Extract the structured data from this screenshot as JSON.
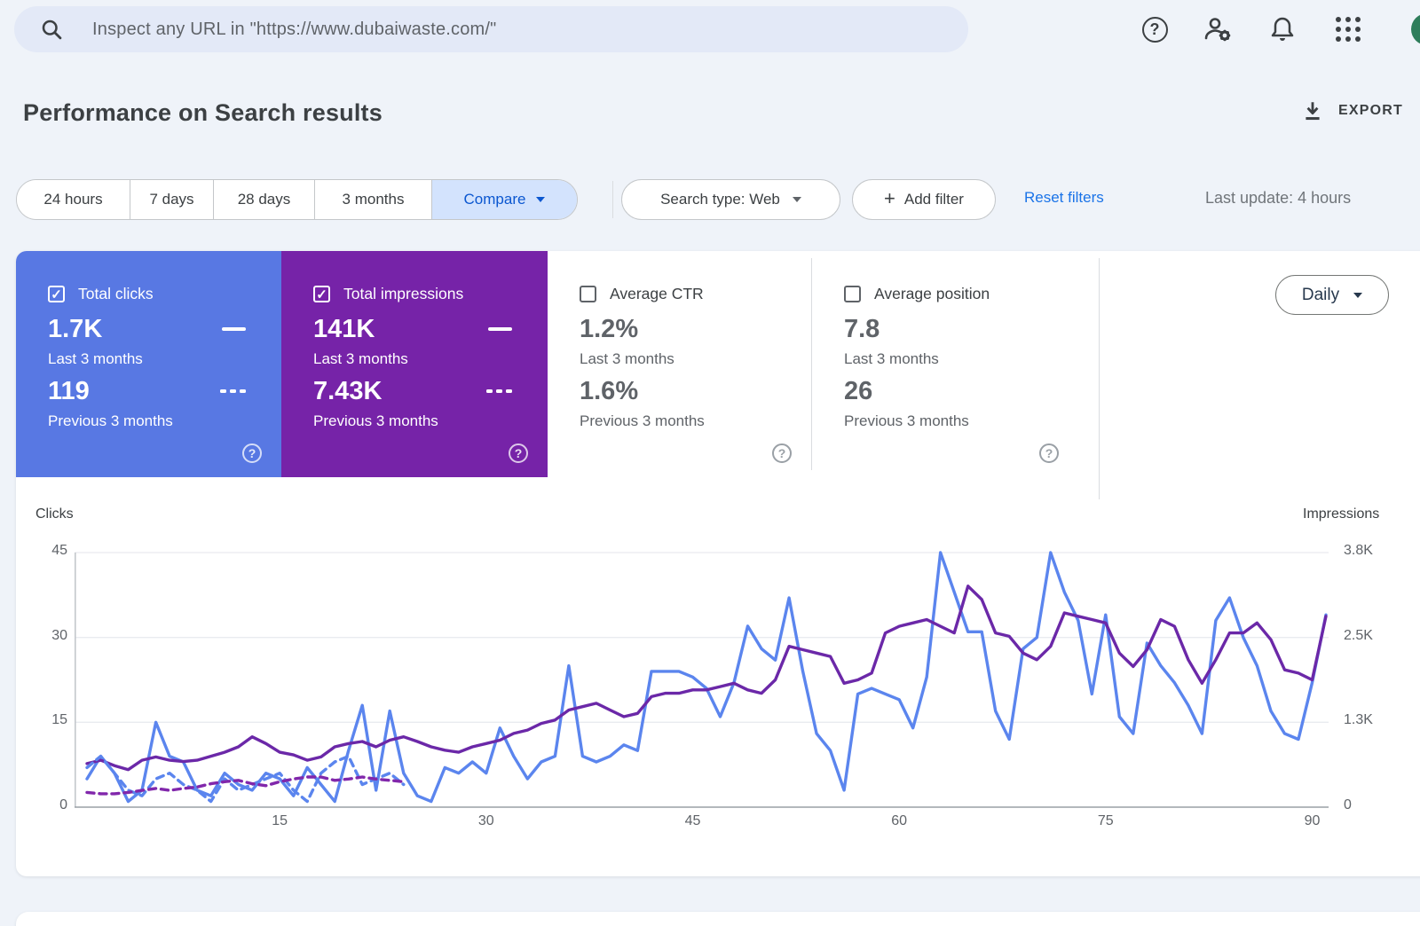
{
  "topbar": {
    "search_placeholder": "Inspect any URL in \"https://www.dubaiwaste.com/\""
  },
  "header": {
    "title": "Performance on Search results",
    "export_label": "EXPORT"
  },
  "filters": {
    "ranges": [
      "24 hours",
      "7 days",
      "28 days",
      "3 months"
    ],
    "compare_label": "Compare",
    "search_type_label": "Search type: Web",
    "add_filter_plus": "+",
    "add_filter_label": "Add filter",
    "reset_label": "Reset filters",
    "last_update": "Last update: 4 hours"
  },
  "icons": {
    "checkmark": "✓",
    "question_mark": "?"
  },
  "tiles": [
    {
      "label": "Total clicks",
      "checked": true,
      "accent": "#5878e3",
      "value_current": "1.7K",
      "caption_current": "Last 3 months",
      "value_previous": "119",
      "caption_previous": "Previous 3 months"
    },
    {
      "label": "Total impressions",
      "checked": true,
      "accent": "#7623a8",
      "value_current": "141K",
      "caption_current": "Last 3 months",
      "value_previous": "7.43K",
      "caption_previous": "Previous 3 months"
    },
    {
      "label": "Average CTR",
      "checked": false,
      "accent": "",
      "value_current": "1.2%",
      "caption_current": "Last 3 months",
      "value_previous": "1.6%",
      "caption_previous": "Previous 3 months"
    },
    {
      "label": "Average position",
      "checked": false,
      "accent": "",
      "value_current": "7.8",
      "caption_current": "Last 3 months",
      "value_previous": "26",
      "caption_previous": "Previous 3 months"
    }
  ],
  "granularity": {
    "label": "Daily"
  },
  "chart_data": {
    "type": "line",
    "left_axis": {
      "label": "Clicks",
      "ticks": [
        0,
        15,
        30,
        45
      ],
      "max": 45
    },
    "right_axis": {
      "label": "Impressions",
      "tick_labels": [
        "0",
        "1.3K",
        "2.5K",
        "3.8K"
      ],
      "max": 3800
    },
    "x_axis": {
      "ticks": [
        15,
        30,
        45,
        60,
        75,
        90
      ],
      "max": 91,
      "unit": "day"
    },
    "grid": true,
    "series": [
      {
        "name": "Clicks — Last 3 months",
        "axis": "left",
        "style": "solid",
        "color": "#5b85ee",
        "values": [
          5,
          9,
          6,
          1,
          3,
          15,
          9,
          8,
          3,
          2,
          6,
          4,
          3,
          6,
          5,
          2,
          7,
          4,
          1,
          10,
          18,
          3,
          17,
          6,
          2,
          1,
          7,
          6,
          8,
          6,
          14,
          9,
          5,
          8,
          9,
          25,
          9,
          8,
          9,
          11,
          10,
          24,
          24,
          24,
          23,
          21,
          16,
          22,
          32,
          28,
          26,
          37,
          24,
          13,
          10,
          3,
          20,
          21,
          20,
          19,
          14,
          23,
          45,
          38,
          31,
          31,
          17,
          12,
          28,
          30,
          45,
          38,
          33,
          20,
          34,
          16,
          13,
          29,
          25,
          22,
          18,
          13,
          33,
          37,
          30,
          25,
          17,
          13,
          12,
          22,
          34
        ]
      },
      {
        "name": "Impressions — Last 3 months",
        "axis": "right",
        "style": "solid",
        "color": "#6b28a8",
        "values": [
          650,
          700,
          620,
          560,
          700,
          750,
          700,
          680,
          700,
          760,
          820,
          900,
          1050,
          950,
          820,
          780,
          700,
          750,
          900,
          950,
          980,
          900,
          1000,
          1050,
          980,
          900,
          850,
          820,
          900,
          950,
          1000,
          1100,
          1150,
          1250,
          1300,
          1450,
          1500,
          1550,
          1450,
          1350,
          1400,
          1650,
          1700,
          1700,
          1750,
          1750,
          1800,
          1850,
          1750,
          1700,
          1900,
          2400,
          2350,
          2300,
          2250,
          1850,
          1900,
          2000,
          2600,
          2700,
          2750,
          2800,
          2700,
          2600,
          3300,
          3100,
          2600,
          2550,
          2300,
          2200,
          2400,
          2900,
          2850,
          2800,
          2750,
          2300,
          2100,
          2350,
          2800,
          2700,
          2200,
          1850,
          2200,
          2600,
          2600,
          2750,
          2500,
          2050,
          2000,
          1900,
          2850
        ]
      },
      {
        "name": "Clicks — Previous 3 months",
        "axis": "left",
        "style": "dashed",
        "color": "#5b85ee",
        "values": [
          7,
          9,
          6,
          3,
          2,
          5,
          6,
          4,
          3,
          1,
          5,
          3,
          4,
          5,
          6,
          3,
          1,
          6,
          8,
          9,
          4,
          5,
          6,
          4
        ]
      },
      {
        "name": "Impressions — Previous 3 months",
        "axis": "right",
        "style": "dashed",
        "color": "#8127ab",
        "values": [
          220,
          200,
          200,
          220,
          250,
          280,
          250,
          280,
          300,
          350,
          380,
          400,
          350,
          320,
          380,
          420,
          450,
          450,
          400,
          420,
          450,
          420,
          400,
          380
        ]
      }
    ]
  }
}
